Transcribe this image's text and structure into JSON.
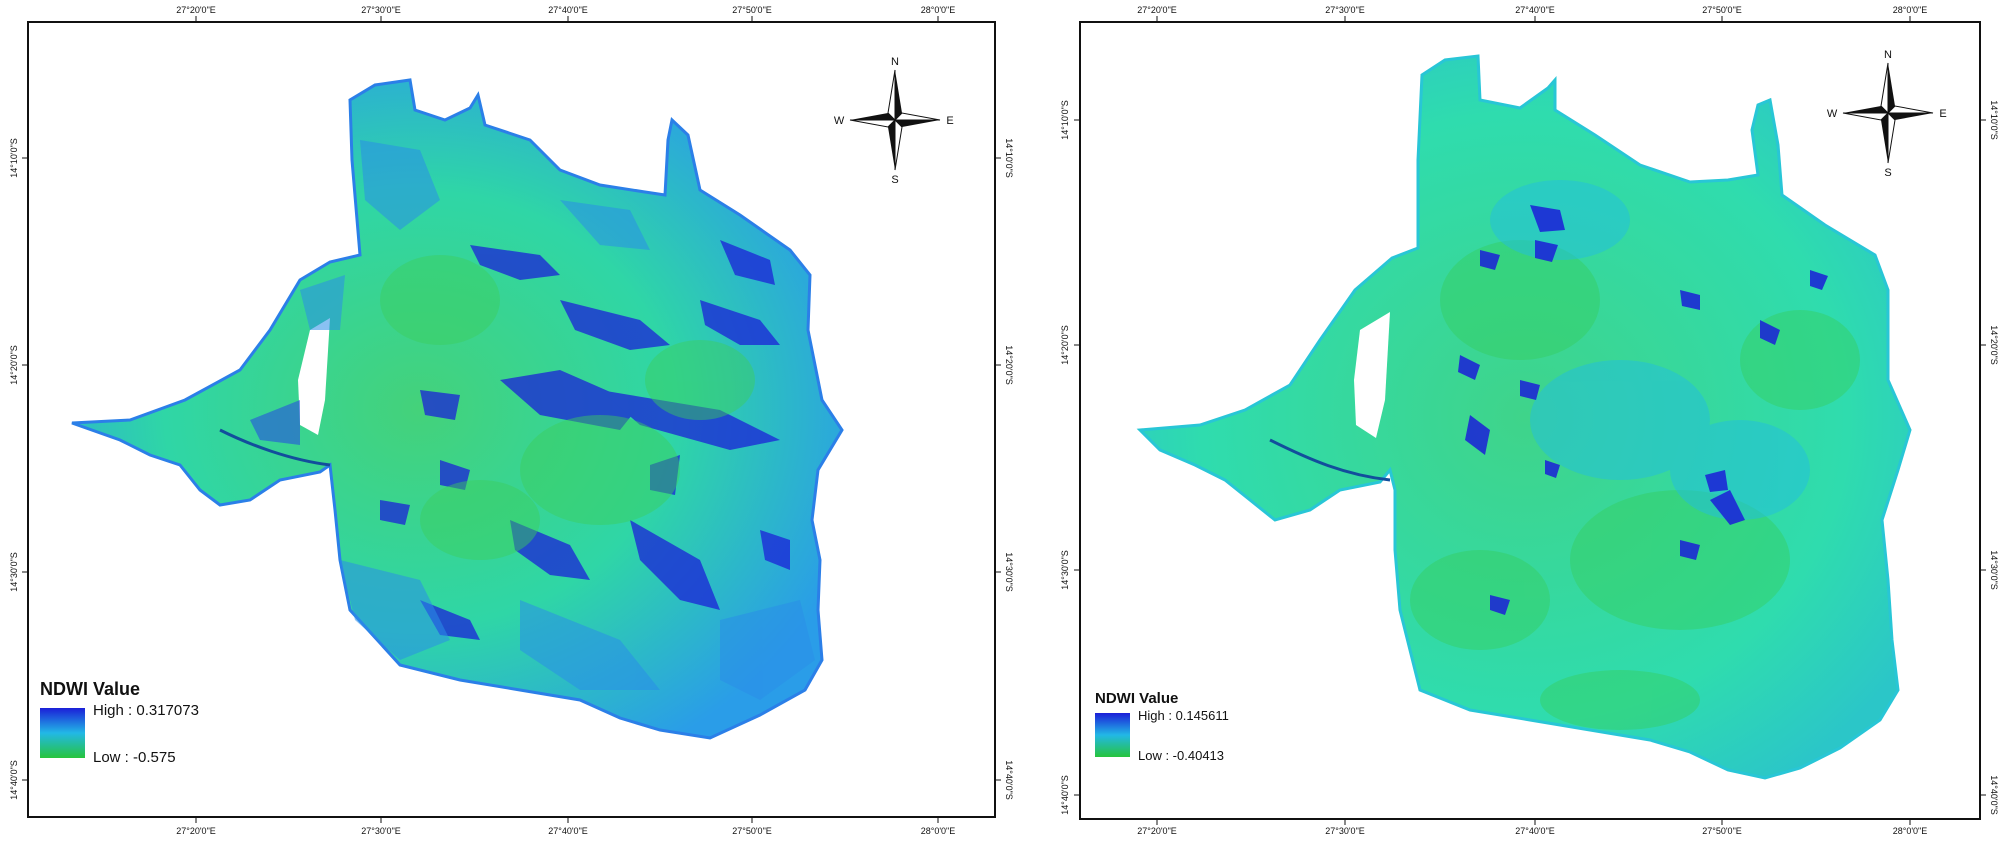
{
  "maps": [
    {
      "legend": {
        "title": "NDWI Value",
        "high": "High : 0.317073",
        "low": "Low : -0.575"
      },
      "top_ticks": [
        "27°20'0\"E",
        "27°30'0\"E",
        "27°40'0\"E",
        "27°50'0\"E",
        "28°0'0\"E"
      ],
      "bottom_ticks": [
        "27°20'0\"E",
        "27°30'0\"E",
        "27°40'0\"E",
        "27°50'0\"E",
        "28°0'0\"E"
      ],
      "left_ticks": [
        "14°10'0\"S",
        "14°20'0\"S",
        "14°30'0\"S",
        "14°40'0\"S"
      ],
      "right_ticks": [
        "14°10'0\"S",
        "14°20'0\"S",
        "14°30'0\"S",
        "14°40'0\"S"
      ],
      "compass": {
        "n": "N",
        "s": "S",
        "e": "E",
        "w": "W"
      },
      "colors": {
        "base": "#2fd9a2",
        "mid": "#22b8e6",
        "high": "#1b22d8",
        "low": "#27c43c"
      }
    },
    {
      "legend": {
        "title": "NDWI Value",
        "high": "High : 0.145611",
        "low": "Low : -0.40413"
      },
      "top_ticks": [
        "27°20'0\"E",
        "27°30'0\"E",
        "27°40'0\"E",
        "27°50'0\"E",
        "28°0'0\"E"
      ],
      "bottom_ticks": [
        "27°20'0\"E",
        "27°30'0\"E",
        "27°40'0\"E",
        "27°50'0\"E",
        "28°0'0\"E"
      ],
      "left_ticks": [
        "14°10'0\"S",
        "14°20'0\"S",
        "14°30'0\"S",
        "14°40'0\"S"
      ],
      "right_ticks": [
        "14°10'0\"S",
        "14°20'0\"S",
        "14°30'0\"S",
        "14°40'0\"S"
      ],
      "compass": {
        "n": "N",
        "s": "S",
        "e": "E",
        "w": "W"
      },
      "colors": {
        "base": "#2fd98c",
        "mid": "#22c8d6",
        "high": "#1b1fd8",
        "low": "#27c43c"
      }
    }
  ]
}
